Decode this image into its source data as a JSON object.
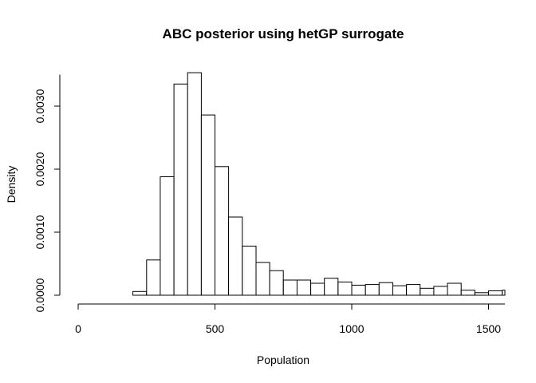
{
  "chart_data": {
    "type": "bar",
    "subtype": "histogram",
    "title": "ABC posterior using hetGP surrogate",
    "xlabel": "Population",
    "ylabel": "Density",
    "xlim": [
      0,
      1550
    ],
    "ylim": [
      0,
      0.0035
    ],
    "x_ticks": [
      0,
      500,
      1000,
      1500
    ],
    "x_tick_labels": [
      "0",
      "500",
      "1000",
      "1500"
    ],
    "y_ticks": [
      0,
      0.001,
      0.002,
      0.003
    ],
    "y_tick_labels": [
      "0.0000",
      "0.0010",
      "0.0020",
      "0.0030"
    ],
    "bin_width": 50,
    "bins": [
      {
        "start": 150,
        "end": 200,
        "value": 0.0
      },
      {
        "start": 200,
        "end": 250,
        "value": 6e-05
      },
      {
        "start": 250,
        "end": 300,
        "value": 0.00056
      },
      {
        "start": 300,
        "end": 350,
        "value": 0.00188
      },
      {
        "start": 350,
        "end": 400,
        "value": 0.00335
      },
      {
        "start": 400,
        "end": 450,
        "value": 0.00353
      },
      {
        "start": 450,
        "end": 500,
        "value": 0.00286
      },
      {
        "start": 500,
        "end": 550,
        "value": 0.00204
      },
      {
        "start": 550,
        "end": 600,
        "value": 0.00124
      },
      {
        "start": 600,
        "end": 650,
        "value": 0.00078
      },
      {
        "start": 650,
        "end": 700,
        "value": 0.00052
      },
      {
        "start": 700,
        "end": 750,
        "value": 0.00039
      },
      {
        "start": 750,
        "end": 800,
        "value": 0.00024
      },
      {
        "start": 800,
        "end": 850,
        "value": 0.00024
      },
      {
        "start": 850,
        "end": 900,
        "value": 0.00019
      },
      {
        "start": 900,
        "end": 950,
        "value": 0.00027
      },
      {
        "start": 950,
        "end": 1000,
        "value": 0.00021
      },
      {
        "start": 1000,
        "end": 1050,
        "value": 0.00016
      },
      {
        "start": 1050,
        "end": 1100,
        "value": 0.00017
      },
      {
        "start": 1100,
        "end": 1150,
        "value": 0.0002
      },
      {
        "start": 1150,
        "end": 1200,
        "value": 0.00015
      },
      {
        "start": 1200,
        "end": 1250,
        "value": 0.00017
      },
      {
        "start": 1250,
        "end": 1300,
        "value": 0.00011
      },
      {
        "start": 1300,
        "end": 1350,
        "value": 0.00014
      },
      {
        "start": 1350,
        "end": 1400,
        "value": 0.00019
      },
      {
        "start": 1400,
        "end": 1450,
        "value": 8e-05
      },
      {
        "start": 1450,
        "end": 1500,
        "value": 4e-05
      },
      {
        "start": 1500,
        "end": 1550,
        "value": 7e-05
      },
      {
        "start": 1550,
        "end": 1600,
        "value": 8e-05
      }
    ],
    "bar_fill": "#ffffff",
    "bar_stroke": "#000000",
    "grid": false,
    "legend": "none"
  }
}
